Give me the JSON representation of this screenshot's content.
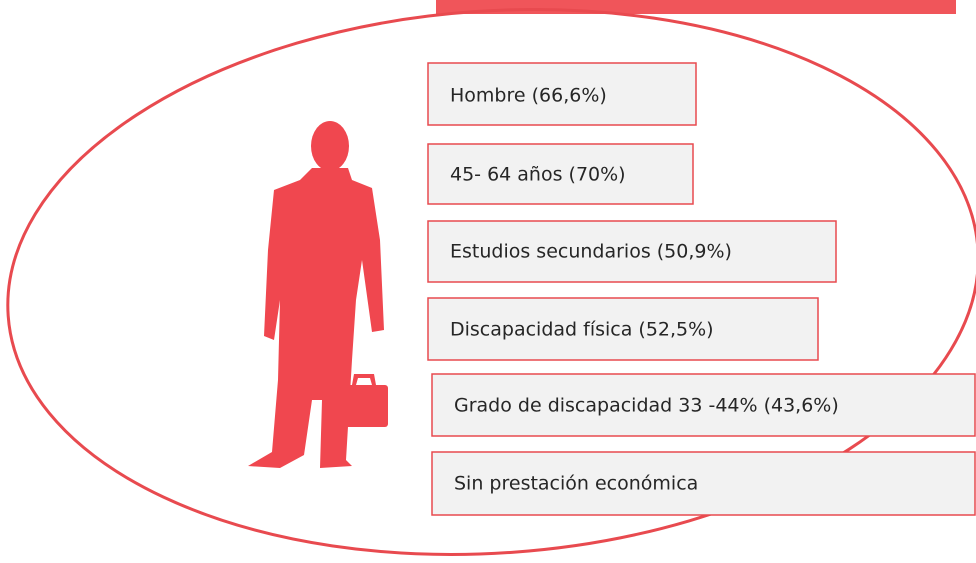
{
  "items": [
    "Hombre (66,6%)",
    "45- 64 años (70%)",
    "Estudios secundarios (50,9%)",
    "Discapacidad física (52,5%)",
    "Grado de discapacidad 33 -44% (43,6%)",
    "Sin prestación económica"
  ]
}
